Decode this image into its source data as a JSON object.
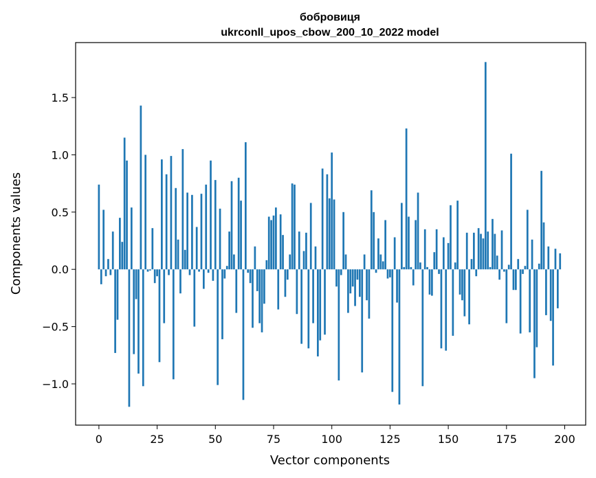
{
  "chart_data": {
    "type": "bar",
    "title": "бобровиця",
    "subtitle": "ukrconll_upos_cbow_200_10_2022 model",
    "xlabel": "Vector components",
    "ylabel": "Components values",
    "xlim": [
      -10,
      209
    ],
    "ylim": [
      -1.36,
      1.98
    ],
    "xticks": [
      0,
      25,
      50,
      75,
      100,
      125,
      150,
      175,
      200
    ],
    "xtick_labels": [
      "0",
      "25",
      "50",
      "75",
      "100",
      "125",
      "150",
      "175",
      "200"
    ],
    "yticks": [
      -1.0,
      -0.5,
      0.0,
      0.5,
      1.0,
      1.5
    ],
    "ytick_labels": [
      "−1.0",
      "−0.5",
      "0.0",
      "0.5",
      "1.0",
      "1.5"
    ],
    "grid": false,
    "bar_color": "#1f77b4",
    "values": [
      0.74,
      -0.13,
      0.52,
      -0.06,
      0.09,
      -0.05,
      0.33,
      -0.73,
      -0.44,
      0.45,
      0.24,
      1.15,
      0.95,
      -1.2,
      0.54,
      -0.74,
      -0.26,
      -0.91,
      1.43,
      -1.02,
      1.0,
      -0.02,
      -0.01,
      0.36,
      -0.12,
      -0.06,
      -0.81,
      0.96,
      -0.47,
      0.83,
      -0.05,
      0.99,
      -0.96,
      0.71,
      0.26,
      -0.21,
      1.05,
      0.17,
      0.67,
      -0.05,
      0.65,
      -0.5,
      0.37,
      -0.02,
      0.66,
      -0.17,
      0.74,
      -0.03,
      0.95,
      -0.1,
      0.78,
      -1.01,
      0.53,
      -0.61,
      -0.08,
      0.03,
      0.33,
      0.77,
      0.13,
      -0.38,
      0.8,
      0.6,
      -1.14,
      1.11,
      -0.03,
      -0.12,
      -0.51,
      0.2,
      -0.19,
      -0.47,
      -0.55,
      -0.3,
      0.08,
      0.46,
      0.43,
      0.47,
      0.54,
      -0.35,
      0.48,
      0.3,
      -0.24,
      -0.09,
      0.13,
      0.75,
      0.74,
      -0.39,
      0.33,
      -0.65,
      0.16,
      0.32,
      -0.69,
      0.58,
      -0.47,
      0.2,
      -0.76,
      -0.62,
      0.88,
      -0.57,
      0.83,
      0.62,
      1.02,
      0.61,
      -0.15,
      -0.97,
      -0.05,
      0.5,
      0.13,
      -0.38,
      -0.21,
      -0.15,
      -0.32,
      -0.09,
      -0.24,
      -0.9,
      0.13,
      -0.27,
      -0.43,
      0.69,
      0.5,
      -0.03,
      0.27,
      0.13,
      0.07,
      0.43,
      -0.08,
      -0.07,
      -1.07,
      0.28,
      -0.29,
      -1.18,
      0.58,
      0.02,
      1.23,
      0.46,
      0.02,
      -0.14,
      0.43,
      0.67,
      0.06,
      -1.02,
      0.35,
      0.02,
      -0.22,
      -0.23,
      0.15,
      0.35,
      -0.04,
      -0.69,
      0.28,
      -0.71,
      0.23,
      0.56,
      -0.58,
      0.06,
      0.6,
      -0.22,
      -0.27,
      -0.41,
      0.32,
      -0.48,
      0.09,
      0.32,
      -0.06,
      0.36,
      0.31,
      0.27,
      1.81,
      0.33,
      0.02,
      0.44,
      0.31,
      0.12,
      -0.09,
      0.34,
      -0.02,
      -0.47,
      0.04,
      1.01,
      -0.18,
      -0.18,
      0.09,
      -0.56,
      -0.04,
      0.03,
      0.52,
      -0.55,
      0.26,
      -0.95,
      -0.68,
      0.05,
      0.86,
      0.41,
      -0.4,
      0.2,
      -0.45,
      -0.84,
      0.18,
      -0.34,
      0.14
    ]
  }
}
